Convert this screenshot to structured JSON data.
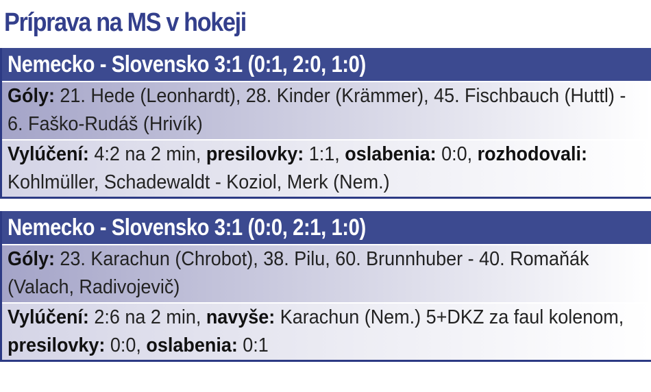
{
  "title": "Príprava na MS v hokeji",
  "matches": [
    {
      "header": "Nemecko - Slovensko 3:1 (0:1, 2:0, 1:0)",
      "goals_label": "Góly:",
      "goals": " 21. Hede (Leonhardt), 28. Kinder (Krämmer), 45. Fischbauch (Huttl) - 6. Faško-Rudáš (Hrivík)",
      "pen_label": "Vylúčení:",
      "pen": " 4:2 na 2 min, ",
      "pp_label": "presilovky:",
      "pp": " 1:1, ",
      "sh_label": "oslabenia:",
      "sh": " 0:0, ",
      "ref_label": "rozhodovali:",
      "ref": " Kohlmüller, Schadewaldt - Koziol, Merk (Nem.)"
    },
    {
      "header": "Nemecko - Slovensko 3:1 (0:0, 2:1, 1:0)",
      "goals_label": "Góly:",
      "goals": " 23. Karachun (Chrobot), 38. Pilu, 60. Brunnhuber - 40. Romaňák (Valach, Radivojevič)",
      "pen_label": "Vylúčení:",
      "pen": " 2:6 na 2 min, ",
      "extra_label": "navyše:",
      "extra": " Karachun (Nem.) 5+DKZ za faul kolenom, ",
      "pp_label": "presilovky:",
      "pp": " 0:0, ",
      "sh_label": "oslabenia:",
      "sh": " 0:1"
    }
  ]
}
